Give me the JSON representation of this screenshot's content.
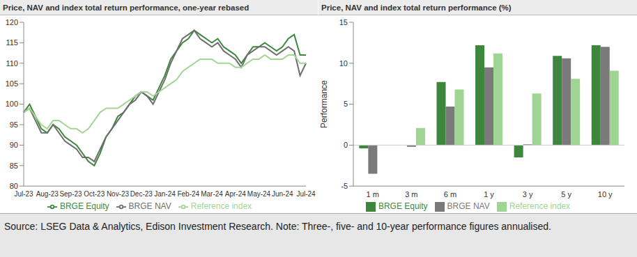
{
  "chart_data": [
    {
      "type": "line",
      "title": "Price, NAV and index total return performance, one-year rebased",
      "categories": [
        "Jul-23",
        null,
        null,
        null,
        "Aug-23",
        null,
        null,
        null,
        "Sep-23",
        null,
        null,
        null,
        "Oct-23",
        null,
        null,
        null,
        "Nov-23",
        null,
        null,
        null,
        "Dec-23",
        null,
        null,
        null,
        "Jan-24",
        null,
        null,
        null,
        "Feb-24",
        null,
        null,
        null,
        "Mar-24",
        null,
        null,
        null,
        "Apr-24",
        null,
        null,
        null,
        "May-24",
        null,
        null,
        null,
        "Jun-24",
        null,
        null,
        null,
        "Jul-24"
      ],
      "series": [
        {
          "name": "BRGE Equity",
          "color": "#3c873c",
          "values": [
            98,
            100,
            97,
            94,
            93,
            95,
            94,
            92,
            91,
            90,
            88,
            86,
            85,
            88,
            92,
            94,
            97,
            98,
            100,
            102,
            103,
            102,
            101,
            104,
            107,
            111,
            113,
            115,
            116,
            118,
            117,
            116,
            115,
            116,
            114,
            113,
            112,
            110,
            112,
            114,
            114,
            115,
            114,
            113,
            114,
            116,
            117,
            112,
            112
          ]
        },
        {
          "name": "BRGE NAV",
          "color": "#6e6e6e",
          "values": [
            98,
            99,
            96,
            93,
            93,
            95,
            93,
            91,
            90,
            89,
            87,
            87,
            86,
            89,
            92,
            94,
            96,
            98,
            100,
            101,
            103,
            102,
            100,
            103,
            106,
            110,
            113,
            116,
            117,
            118,
            116,
            115,
            114,
            115,
            113,
            112,
            111,
            109,
            112,
            113,
            114,
            114,
            113,
            112,
            113,
            114,
            113,
            107,
            110
          ]
        },
        {
          "name": "Reference index",
          "color": "#a3d596",
          "values": [
            98,
            99,
            97,
            95,
            94,
            96,
            96,
            95,
            94,
            94,
            93,
            94,
            96,
            98,
            99,
            99,
            99,
            100,
            101,
            102,
            103,
            103,
            102,
            103,
            104,
            105,
            106,
            108,
            109,
            110,
            111,
            111,
            111,
            110,
            110,
            110,
            109,
            109,
            110,
            111,
            111,
            112,
            111,
            111,
            111,
            112,
            112,
            110,
            110
          ]
        }
      ],
      "ylim": [
        80,
        120
      ],
      "yticks": [
        80,
        85,
        90,
        95,
        100,
        105,
        110,
        115,
        120
      ],
      "grid": false,
      "legend": "bottom"
    },
    {
      "type": "bar",
      "title": "Price, NAV and index total return performance (%)",
      "categories": [
        "1 m",
        "3 m",
        "6 m",
        "1 y",
        "3 y",
        "5 y",
        "10 y"
      ],
      "series": [
        {
          "name": "BRGE Equity",
          "color": "#3c873c",
          "values": [
            -0.4,
            0.0,
            7.7,
            12.2,
            -1.5,
            10.9,
            12.2
          ]
        },
        {
          "name": "BRGE NAV",
          "color": "#7a7a7a",
          "values": [
            -3.5,
            -0.2,
            4.7,
            9.5,
            0.1,
            10.6,
            12.0
          ]
        },
        {
          "name": "Reference index",
          "color": "#9fd592",
          "values": [
            0.0,
            2.1,
            6.8,
            11.2,
            6.3,
            8.1,
            9.1
          ]
        }
      ],
      "ylim": [
        -5,
        15
      ],
      "yticks": [
        -5,
        0,
        5,
        10,
        15
      ],
      "ylabel": "Performance",
      "grid": false,
      "legend": "bottom"
    }
  ],
  "source": "Source: LSEG Data & Analytics, Edison Investment Research. Note: Three-, five- and 10-year performance figures annualised."
}
